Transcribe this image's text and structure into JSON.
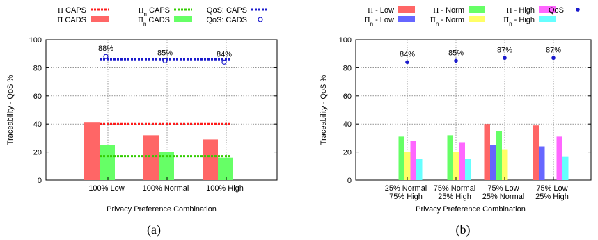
{
  "charts": [
    {
      "type": "bar",
      "caption": "(a)",
      "xlabel": "Privacy Preference Combination",
      "ylabel": "Traceability - QoS %",
      "ylim": [
        0,
        100
      ],
      "yticks": [
        0,
        20,
        40,
        60,
        80,
        100
      ],
      "grid": true,
      "legend": [
        {
          "text": "Π CAPS",
          "kind": "dashed",
          "color": "#ff1a1a"
        },
        {
          "text": "Π CADS",
          "kind": "bar",
          "color": "#ff6666"
        },
        {
          "text": "Πn CAPS",
          "kind": "dashed",
          "color": "#33cc00"
        },
        {
          "text": "Πn CADS",
          "kind": "bar",
          "color": "#66ff66"
        },
        {
          "text": "QoS: CAPS",
          "kind": "dashed",
          "color": "#1a1acc"
        },
        {
          "text": "QoS: CADS",
          "kind": "circle",
          "color": "#1a1acc"
        }
      ],
      "categories": [
        "100% Low",
        "100% Normal",
        "100% High"
      ],
      "bar_series": [
        {
          "name": "Π CADS",
          "color": "#ff6666",
          "values": [
            41,
            32,
            29
          ]
        },
        {
          "name": "Πn CADS",
          "color": "#66ff66",
          "values": [
            25,
            20,
            16
          ]
        }
      ],
      "line_series": [
        {
          "name": "Π CAPS",
          "color": "#ff1a1a",
          "value": 40
        },
        {
          "name": "Πn CAPS",
          "color": "#33cc00",
          "value": 17
        },
        {
          "name": "QoS: CAPS",
          "color": "#1a1acc",
          "value": 86
        }
      ],
      "qos_points": {
        "name": "QoS: CADS",
        "color": "#1a1acc",
        "values": [
          88,
          85,
          84
        ],
        "labels": [
          "88%",
          "85%",
          "84%"
        ]
      }
    },
    {
      "type": "bar",
      "caption": "(b)",
      "xlabel": "Privacy Preference Combination",
      "ylabel": "Traceability - QoS %",
      "ylim": [
        0,
        100
      ],
      "yticks": [
        0,
        20,
        40,
        60,
        80,
        100
      ],
      "grid": true,
      "legend": [
        {
          "text": "Π - Low",
          "kind": "bar",
          "color": "#ff6666"
        },
        {
          "text": "Πn - Low",
          "kind": "bar",
          "color": "#6666ff"
        },
        {
          "text": "Π - Norm",
          "kind": "bar",
          "color": "#66ff66"
        },
        {
          "text": "Πn - Norm",
          "kind": "bar",
          "color": "#ffff66"
        },
        {
          "text": "Π - High",
          "kind": "bar",
          "color": "#ff66ff"
        },
        {
          "text": "Πn - High",
          "kind": "bar",
          "color": "#66ffff"
        },
        {
          "text": "QoS",
          "kind": "dot",
          "color": "#1a1acc"
        }
      ],
      "categories": [
        [
          "25% Normal",
          "75% High"
        ],
        [
          "75% Normal",
          "25% High"
        ],
        [
          "75% Low",
          "25% Normal"
        ],
        [
          "75% Low",
          "25% High"
        ]
      ],
      "bar_series": [
        {
          "name": "Π - Low",
          "color": "#ff6666",
          "values": [
            0,
            0,
            40,
            39
          ]
        },
        {
          "name": "Πn - Low",
          "color": "#6666ff",
          "values": [
            0,
            0,
            25,
            24
          ]
        },
        {
          "name": "Π - Norm",
          "color": "#66ff66",
          "values": [
            31,
            32,
            35,
            0
          ]
        },
        {
          "name": "Πn - Norm",
          "color": "#ffff66",
          "values": [
            20,
            20,
            22,
            0
          ]
        },
        {
          "name": "Π - High",
          "color": "#ff66ff",
          "values": [
            28,
            27,
            0,
            31
          ]
        },
        {
          "name": "Πn - High",
          "color": "#66ffff",
          "values": [
            15,
            15,
            0,
            17
          ]
        }
      ],
      "qos_points": {
        "name": "QoS",
        "color": "#1a1acc",
        "values": [
          84,
          85,
          87,
          87
        ],
        "labels": [
          "84%",
          "85%",
          "87%",
          "87%"
        ]
      }
    }
  ]
}
